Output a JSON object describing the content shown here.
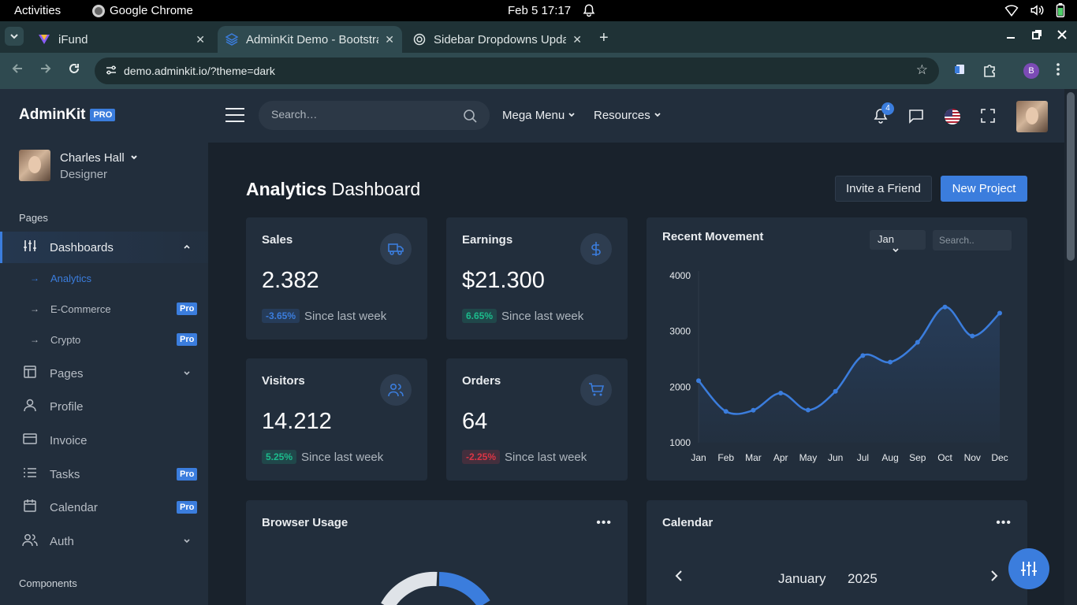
{
  "system": {
    "activities": "Activities",
    "app": "Google Chrome",
    "datetime": "Feb 5  17:17"
  },
  "tabs": [
    {
      "title": "iFund",
      "close": "✕"
    },
    {
      "title": "AdminKit Demo - Bootstrap",
      "close": "✕"
    },
    {
      "title": "Sidebar Dropdowns Updated",
      "close": "✕"
    }
  ],
  "address": {
    "url": "demo.adminkit.io/?theme=dark",
    "profile_initial": "B"
  },
  "sidebar": {
    "brand": "AdminKit",
    "brand_badge": "PRO",
    "user": {
      "name": "Charles Hall",
      "role": "Designer"
    },
    "header_pages": "Pages",
    "header_components": "Components",
    "dashboards": "Dashboards",
    "sub": [
      {
        "label": "Analytics",
        "badge": ""
      },
      {
        "label": "E-Commerce",
        "badge": "Pro"
      },
      {
        "label": "Crypto",
        "badge": "Pro"
      }
    ],
    "items": [
      {
        "label": "Pages",
        "badge": ""
      },
      {
        "label": "Profile",
        "badge": ""
      },
      {
        "label": "Invoice",
        "badge": ""
      },
      {
        "label": "Tasks",
        "badge": "Pro"
      },
      {
        "label": "Calendar",
        "badge": "Pro"
      },
      {
        "label": "Auth",
        "badge": ""
      }
    ]
  },
  "navbar": {
    "search_placeholder": "Search…",
    "mega_menu": "Mega Menu",
    "resources": "Resources",
    "notif_count": "4"
  },
  "header": {
    "title_bold": "Analytics",
    "title_rest": " Dashboard",
    "invite": "Invite a Friend",
    "new_project": "New Project"
  },
  "stats": [
    {
      "title": "Sales",
      "value": "2.382",
      "change": "-3.65%",
      "note": "Since last week"
    },
    {
      "title": "Earnings",
      "value": "$21.300",
      "change": "6.65%",
      "note": "Since last week"
    },
    {
      "title": "Visitors",
      "value": "14.212",
      "change": "5.25%",
      "note": "Since last week"
    },
    {
      "title": "Orders",
      "value": "64",
      "change": "-2.25%",
      "note": "Since last week"
    }
  ],
  "movement": {
    "title": "Recent Movement",
    "month_select": "Jan",
    "search_placeholder": "Search.."
  },
  "browser_usage": {
    "title": "Browser Usage"
  },
  "calendar": {
    "title": "Calendar",
    "month": "January",
    "year": "2025"
  },
  "colors": {
    "accent": "#3b7ddd",
    "sidebar": "#222e3c",
    "bg": "#19222c",
    "green": "#1cbb8c",
    "red": "#dc3545"
  },
  "chart_data": {
    "type": "line",
    "title": "Recent Movement",
    "categories": [
      "Jan",
      "Feb",
      "Mar",
      "Apr",
      "May",
      "Jun",
      "Jul",
      "Aug",
      "Sep",
      "Oct",
      "Nov",
      "Dec"
    ],
    "values": [
      2115,
      1562,
      1584,
      1892,
      1587,
      1923,
      2566,
      2448,
      2805,
      3438,
      2917,
      3327
    ],
    "ylim": [
      1000,
      4000
    ],
    "yticks": [
      1000,
      2000,
      3000,
      4000
    ],
    "xlabel": "",
    "ylabel": ""
  }
}
